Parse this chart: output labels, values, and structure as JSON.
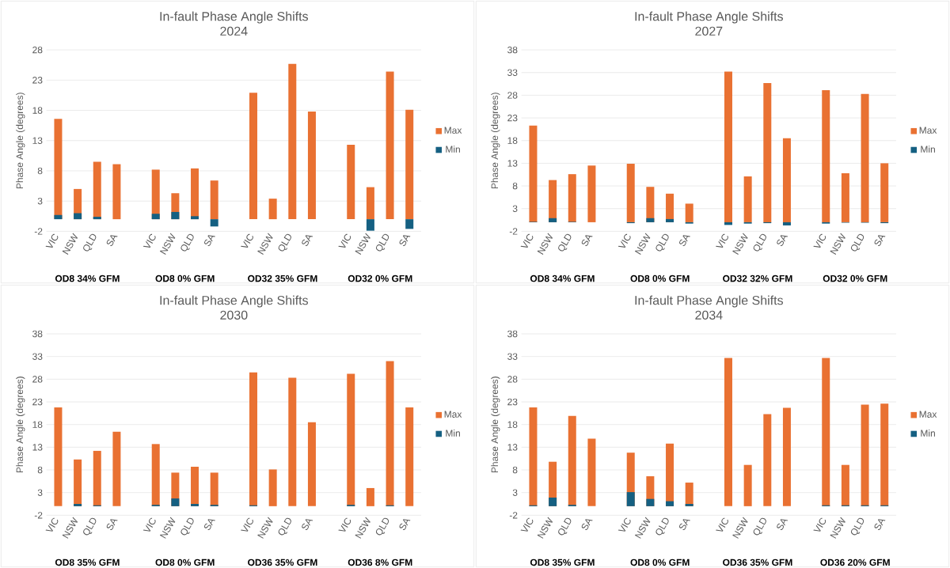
{
  "chart_data": [
    {
      "type": "bar",
      "title": "In-fault Phase Angle Shifts",
      "subtitle": "2024",
      "ylabel": "Phase Angle (degrees)",
      "categories": [
        "VIC",
        "NSW",
        "QLD",
        "SA",
        null,
        "VIC",
        "NSW",
        "QLD",
        "SA",
        null,
        "VIC",
        "NSW",
        "QLD",
        "SA",
        null,
        "VIC",
        "NSW",
        "QLD",
        "SA"
      ],
      "series": [
        {
          "name": "Max",
          "color": "#e97132",
          "values": [
            16.6,
            5.0,
            9.5,
            9.1,
            null,
            8.2,
            4.3,
            8.4,
            6.4,
            null,
            20.9,
            3.4,
            25.7,
            17.8,
            null,
            12.3,
            5.3,
            24.4,
            18.1
          ]
        },
        {
          "name": "Min",
          "color": "#156082",
          "values": [
            0.7,
            1.0,
            0.4,
            0,
            null,
            0.9,
            1.2,
            0.5,
            -1.2,
            null,
            0,
            0,
            0,
            0,
            null,
            0,
            -1.9,
            0,
            -1.6
          ]
        }
      ],
      "annotations": [
        "OD8 34% GFM",
        "OD8 0% GFM",
        "OD32 35% GFM",
        "OD32 0% GFM"
      ],
      "ylim": [
        -2,
        28
      ],
      "yticks": [
        -2,
        3,
        8,
        13,
        18,
        23,
        28
      ],
      "grid": "y",
      "legend": "right"
    },
    {
      "type": "bar",
      "title": "In-fault Phase Angle Shifts",
      "subtitle": "2027",
      "ylabel": "Phase Angle (degrees)",
      "categories": [
        "VIC",
        "NSW",
        "QLD",
        "SA",
        null,
        "VIC",
        "NSW",
        "QLD",
        "SA",
        null,
        "VIC",
        "NSW",
        "QLD",
        "SA",
        null,
        "VIC",
        "NSW",
        "QLD",
        "SA"
      ],
      "series": [
        {
          "name": "Max",
          "color": "#e97132",
          "values": [
            21.3,
            9.3,
            10.6,
            12.5,
            null,
            12.9,
            7.8,
            6.3,
            4.1,
            null,
            33.2,
            10.1,
            30.7,
            18.5,
            null,
            29.1,
            10.8,
            28.3,
            13.0
          ]
        },
        {
          "name": "Min",
          "color": "#156082",
          "values": [
            0.1,
            0.9,
            0.1,
            0,
            null,
            -0.2,
            0.9,
            0.7,
            -0.3,
            null,
            -0.6,
            -0.3,
            -0.2,
            -0.7,
            null,
            -0.3,
            -0.1,
            -0.1,
            -0.2
          ]
        }
      ],
      "annotations": [
        "OD8 34% GFM",
        "OD8 0% GFM",
        "OD32 32% GFM",
        "OD32 0% GFM"
      ],
      "ylim": [
        -2,
        38
      ],
      "yticks": [
        -2,
        3,
        8,
        13,
        18,
        23,
        28,
        33,
        38
      ],
      "grid": "y",
      "legend": "right"
    },
    {
      "type": "bar",
      "title": "In-fault Phase Angle Shifts",
      "subtitle": "2030",
      "ylabel": "Phase Angle (degrees)",
      "categories": [
        "VIC",
        "NSW",
        "QLD",
        "SA",
        null,
        "VIC",
        "NSW",
        "QLD",
        "SA",
        null,
        "VIC",
        "NSW",
        "QLD",
        "SA",
        null,
        "VIC",
        "NSW",
        "QLD",
        "SA"
      ],
      "series": [
        {
          "name": "Max",
          "color": "#e97132",
          "values": [
            21.8,
            10.3,
            12.2,
            16.4,
            null,
            13.7,
            7.4,
            8.7,
            7.4,
            null,
            29.5,
            8.1,
            28.3,
            18.5,
            null,
            29.2,
            4.0,
            32.0,
            21.8
          ]
        },
        {
          "name": "Min",
          "color": "#156082",
          "values": [
            0,
            0.5,
            0.2,
            0,
            null,
            0.3,
            1.7,
            0.5,
            0.3,
            null,
            0.2,
            0,
            0,
            0,
            null,
            0.3,
            0,
            0.2,
            0
          ]
        }
      ],
      "annotations": [
        "OD8 35% GFM",
        "OD8 0% GFM",
        "OD36 35% GFM",
        "OD36 8% GFM"
      ],
      "ylim": [
        -2,
        38
      ],
      "yticks": [
        -2,
        3,
        8,
        13,
        18,
        23,
        28,
        33,
        38
      ],
      "grid": "y",
      "legend": "right"
    },
    {
      "type": "bar",
      "title": "In-fault Phase Angle Shifts",
      "subtitle": "2034",
      "ylabel": "Phase Angle (degrees)",
      "categories": [
        "VIC",
        "NSW",
        "QLD",
        "SA",
        null,
        "VIC",
        "NSW",
        "QLD",
        "SA",
        null,
        "VIC",
        "NSW",
        "QLD",
        "SA",
        null,
        "VIC",
        "NSW",
        "QLD",
        "SA"
      ],
      "series": [
        {
          "name": "Max",
          "color": "#e97132",
          "values": [
            21.8,
            9.8,
            19.9,
            14.9,
            null,
            11.8,
            6.6,
            13.8,
            5.2,
            null,
            32.7,
            9.1,
            20.3,
            21.7,
            null,
            32.7,
            9.1,
            22.4,
            22.6
          ]
        },
        {
          "name": "Min",
          "color": "#156082",
          "values": [
            0.2,
            1.9,
            0.3,
            0,
            null,
            3.1,
            1.6,
            1.1,
            0.5,
            null,
            0,
            0,
            0,
            0,
            null,
            0.2,
            0.2,
            0.2,
            0.2
          ]
        }
      ],
      "annotations": [
        "OD8 35% GFM",
        "OD8 0% GFM",
        "OD36 35% GFM",
        "OD36 20% GFM"
      ],
      "ylim": [
        -2,
        38
      ],
      "yticks": [
        -2,
        3,
        8,
        13,
        18,
        23,
        28,
        33,
        38
      ],
      "grid": "y",
      "legend": "right"
    }
  ]
}
